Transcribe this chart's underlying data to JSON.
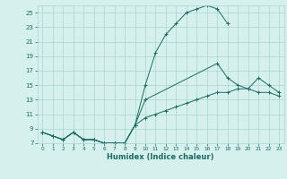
{
  "xlabel": "Humidex (Indice chaleur)",
  "background_color": "#d6f0ee",
  "grid_color": "#aad4d0",
  "line_color": "#1a6b60",
  "xlim": [
    -0.5,
    23.5
  ],
  "ylim": [
    7,
    26
  ],
  "yticks": [
    7,
    9,
    11,
    13,
    15,
    17,
    19,
    21,
    23,
    25
  ],
  "xticks": [
    0,
    1,
    2,
    3,
    4,
    5,
    6,
    7,
    8,
    9,
    10,
    11,
    12,
    13,
    14,
    15,
    16,
    17,
    18,
    19,
    20,
    21,
    22,
    23
  ],
  "s1_x": [
    0,
    1,
    2,
    3,
    4,
    5,
    6,
    7,
    8,
    9,
    10,
    11,
    12,
    13,
    14,
    15,
    16,
    17,
    18
  ],
  "s1_y": [
    8.5,
    8.0,
    7.5,
    8.5,
    7.5,
    7.5,
    7.0,
    7.0,
    7.0,
    9.5,
    15.0,
    19.5,
    22.0,
    23.5,
    25.0,
    25.5,
    26.0,
    25.5,
    23.5
  ],
  "s2_x": [
    0,
    1,
    2,
    3,
    4,
    5,
    6,
    7,
    8,
    9,
    10,
    17,
    18,
    19,
    20,
    21,
    22,
    23
  ],
  "s2_y": [
    8.5,
    8.0,
    7.5,
    8.5,
    7.5,
    7.5,
    7.0,
    7.0,
    7.0,
    9.5,
    13.0,
    18.0,
    16.0,
    15.0,
    14.5,
    16.0,
    15.0,
    14.0
  ],
  "s3_x": [
    0,
    1,
    2,
    3,
    4,
    5,
    6,
    7,
    8,
    9,
    10,
    11,
    12,
    13,
    14,
    15,
    16,
    17,
    18,
    19,
    20,
    21,
    22,
    23
  ],
  "s3_y": [
    8.5,
    8.0,
    7.5,
    8.5,
    7.5,
    7.5,
    7.0,
    7.0,
    7.0,
    9.5,
    10.5,
    11.0,
    11.5,
    12.0,
    12.5,
    13.0,
    13.5,
    14.0,
    14.0,
    14.5,
    14.5,
    14.0,
    14.0,
    13.5
  ]
}
